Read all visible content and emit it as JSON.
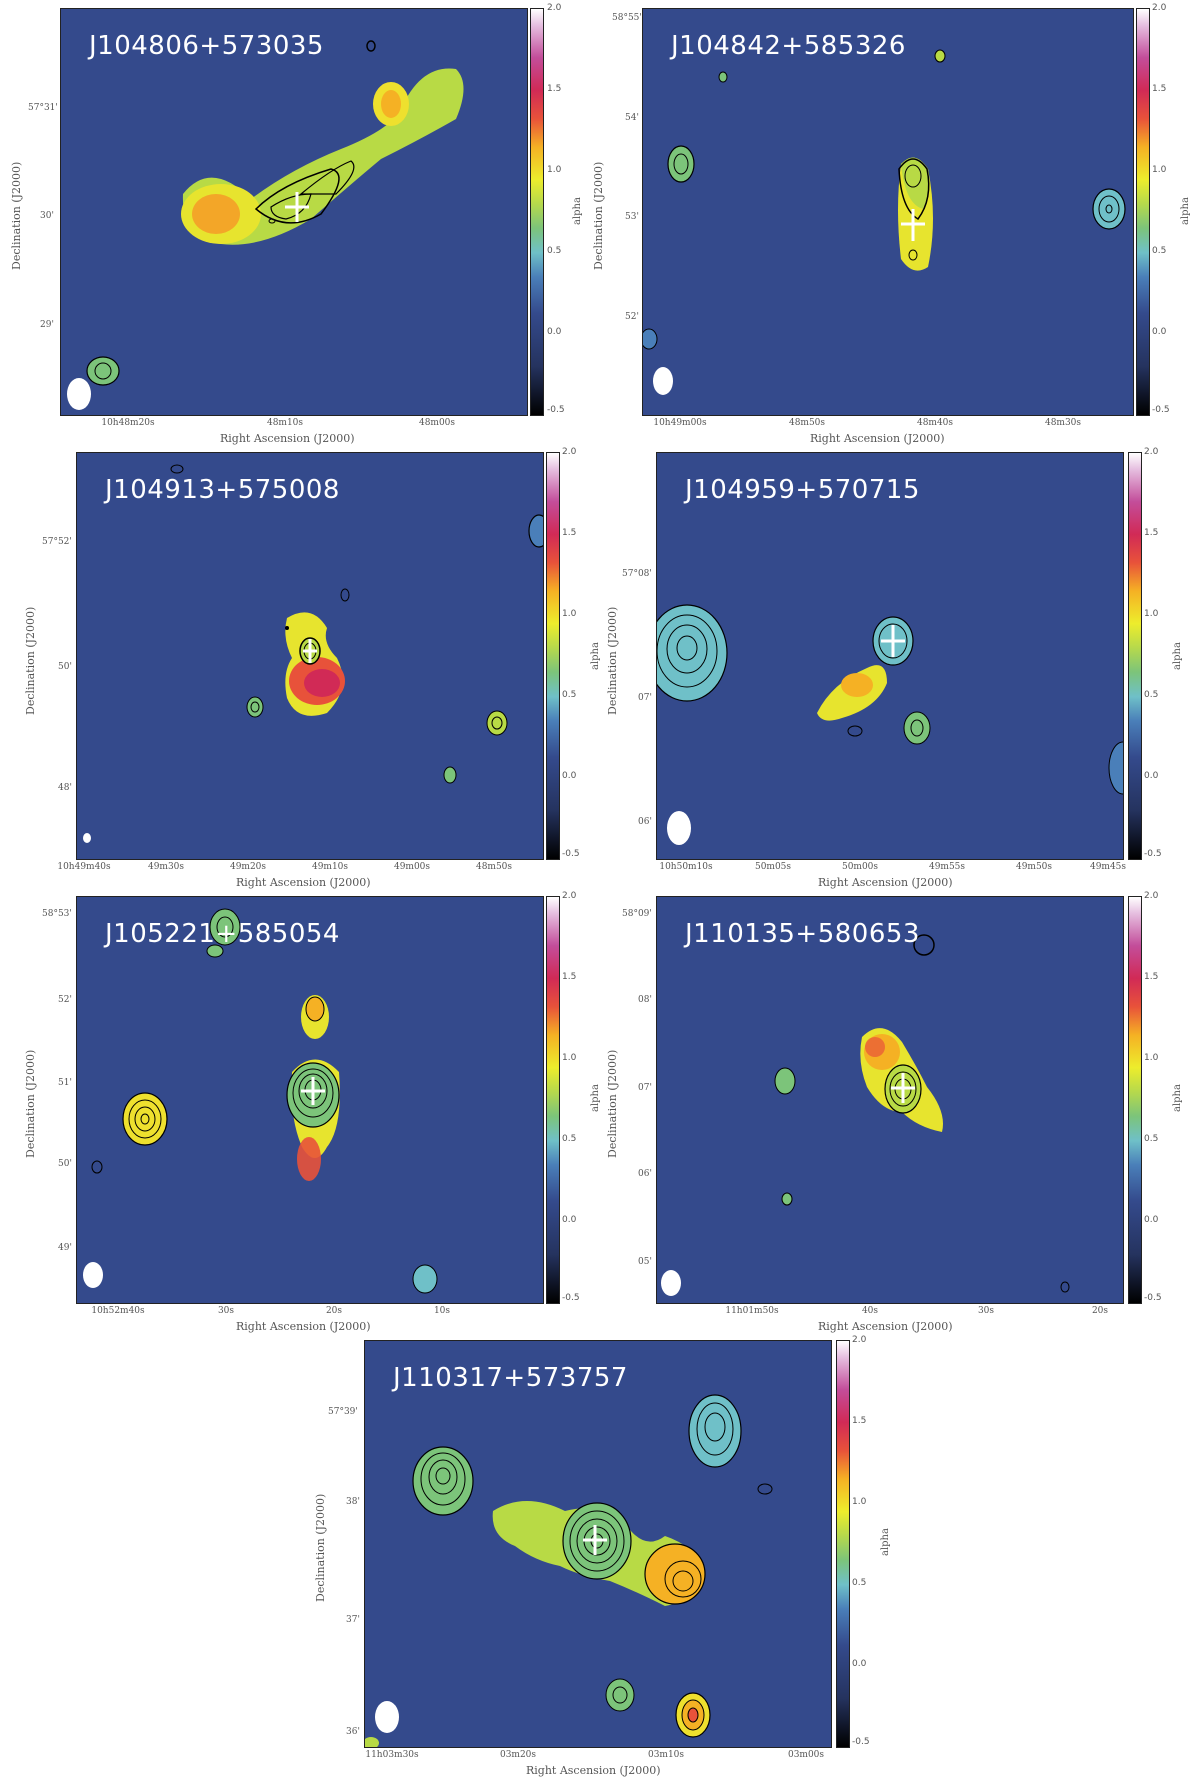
{
  "colorbar": {
    "label": "alpha",
    "ticks": [
      "2.0",
      "1.5",
      "1.0",
      "0.5",
      "0.0",
      "-0.5"
    ]
  },
  "axes": {
    "xlabel": "Right Ascension (J2000)",
    "ylabel": "Declination (J2000)"
  },
  "panels": [
    {
      "title": "J104806+573035",
      "xticks": [
        "10h48m20s",
        "48m10s",
        "48m00s"
      ],
      "yticks": [
        "57°31'",
        "30'",
        "29'"
      ]
    },
    {
      "title": "J104842+585326",
      "xticks": [
        "10h49m00s",
        "48m50s",
        "48m40s",
        "48m30s"
      ],
      "yticks": [
        "58°55'",
        "54'",
        "53'",
        "52'"
      ]
    },
    {
      "title": "J104913+575008",
      "xticks": [
        "10h49m40s",
        "49m30s",
        "49m20s",
        "49m10s",
        "49m00s",
        "48m50s"
      ],
      "yticks": [
        "57°52'",
        "50'",
        "48'"
      ]
    },
    {
      "title": "J104959+570715",
      "xticks": [
        "10h50m10s",
        "50m05s",
        "50m00s",
        "49m55s",
        "49m50s",
        "49m45s"
      ],
      "yticks": [
        "57°08'",
        "07'",
        "06'"
      ]
    },
    {
      "title": "J105221+585054",
      "xticks": [
        "10h52m40s",
        "30s",
        "20s",
        "10s"
      ],
      "yticks": [
        "58°53'",
        "52'",
        "51'",
        "50'",
        "49'"
      ]
    },
    {
      "title": "J110135+580653",
      "xticks": [
        "11h01m50s",
        "40s",
        "30s",
        "20s"
      ],
      "yticks": [
        "58°09'",
        "08'",
        "07'",
        "06'",
        "05'"
      ]
    },
    {
      "title": "J110317+573757",
      "xticks": [
        "11h03m30s",
        "03m20s",
        "03m10s",
        "03m00s"
      ],
      "yticks": [
        "57°39'",
        "38'",
        "37'",
        "36'"
      ]
    }
  ]
}
